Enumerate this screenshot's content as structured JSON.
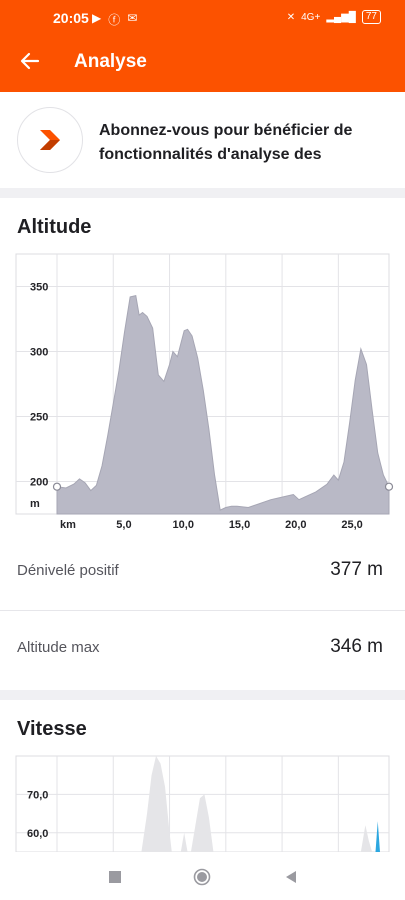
{
  "status_bar": {
    "time": "20:05",
    "battery": "77",
    "network": "4G+"
  },
  "app_bar": {
    "title": "Analyse",
    "back_icon": "arrow-left-icon"
  },
  "promo": {
    "text": "Abonnez-vous pour bénéficier de fonctionnalités d'analyse des"
  },
  "altitude": {
    "title": "Altitude",
    "stats": [
      {
        "label": "Dénivelé positif",
        "value": "377 m"
      },
      {
        "label": "Altitude max",
        "value": "346 m"
      }
    ]
  },
  "vitesse": {
    "title": "Vitesse"
  },
  "colors": {
    "accent": "#fc5200",
    "altitude_fill": "#b9b9c6",
    "speed_fill": "#e5e5e8",
    "speed_highlight": "#2ca7e0"
  },
  "chart_data": [
    {
      "type": "area",
      "title": "Altitude",
      "ylabel": "m",
      "xlabel": "km",
      "x_ticks": [
        "km",
        "5,0",
        "10,0",
        "15,0",
        "20,0",
        "25,0"
      ],
      "y_ticks": [
        "350",
        "300",
        "250",
        "200",
        "m"
      ],
      "ylim": [
        175,
        375
      ],
      "xlim": [
        0,
        29.5
      ],
      "grid": true,
      "x": [
        0,
        0.8,
        1.5,
        2.0,
        2.5,
        3.0,
        3.5,
        4.0,
        4.5,
        5.0,
        5.5,
        6.0,
        6.5,
        7.0,
        7.3,
        7.6,
        8.0,
        8.5,
        9.0,
        9.5,
        10.0,
        10.3,
        10.7,
        11.0,
        11.3,
        11.6,
        12.0,
        12.5,
        13.0,
        13.5,
        14.0,
        14.5,
        15.0,
        15.5,
        16.0,
        17.0,
        18.0,
        19.0,
        20.0,
        21.0,
        21.5,
        22.0,
        23.0,
        24.0,
        24.6,
        25.0,
        25.5,
        26.0,
        26.5,
        27.0,
        27.5,
        28.0,
        28.5,
        29.0,
        29.5
      ],
      "y": [
        196,
        195,
        198,
        202,
        199,
        193,
        197,
        212,
        235,
        260,
        285,
        315,
        342,
        343,
        328,
        330,
        327,
        318,
        282,
        277,
        290,
        300,
        296,
        306,
        316,
        317,
        312,
        295,
        270,
        240,
        205,
        178,
        180,
        181,
        181,
        180,
        183,
        186,
        188,
        190,
        186,
        188,
        192,
        198,
        205,
        201,
        215,
        245,
        278,
        302,
        290,
        255,
        222,
        205,
        196
      ]
    },
    {
      "type": "area",
      "title": "Vitesse",
      "y_ticks": [
        "70,0",
        "60,0"
      ],
      "ylim": [
        55,
        80
      ],
      "xlim": [
        0,
        29.5
      ],
      "grid": true,
      "series": [
        {
          "x": [
            7.5,
            8.0,
            8.4,
            8.8,
            9.2,
            9.6,
            10.0,
            10.2
          ],
          "y": [
            55,
            65,
            75,
            80,
            78,
            72,
            60,
            55
          ]
        },
        {
          "x": [
            11.0,
            11.3,
            11.6,
            11.9,
            12.2,
            12.5
          ],
          "y": [
            55,
            60,
            55,
            55,
            55,
            55
          ]
        },
        {
          "x": [
            11.9,
            12.3,
            12.7,
            13.1,
            13.5,
            13.9
          ],
          "y": [
            55,
            62,
            69,
            70,
            64,
            55
          ]
        },
        {
          "x": [
            27.0,
            27.4,
            27.7,
            28.0
          ],
          "y": [
            55,
            62,
            58,
            55
          ]
        },
        {
          "x": [
            28.3,
            28.5,
            28.7
          ],
          "y": [
            55,
            63,
            55
          ]
        }
      ]
    }
  ]
}
